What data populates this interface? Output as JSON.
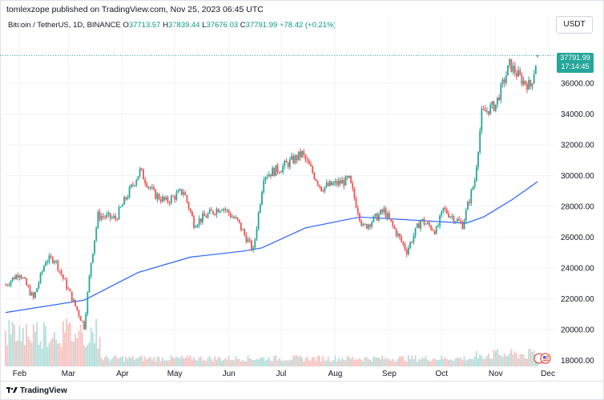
{
  "header": {
    "publisher": "tomlexzope published on TradingView.com, Nov 25, 2023 06:45 UTC"
  },
  "ohlc": {
    "symbol": "Bitcoin / TetherUS, 1D, BINANCE",
    "o_label": "O",
    "o_value": "37713.57",
    "h_label": "H",
    "h_value": "37839.44",
    "l_label": "L",
    "l_value": "37676.03",
    "c_label": "C",
    "c_value": "37791.99",
    "change": "+78.42 (+0.21%)"
  },
  "currency": "USDT",
  "last_price": {
    "price": "37791.99",
    "countdown": "17:14:45"
  },
  "footer": {
    "brand": "TradingView"
  },
  "colors": {
    "up": "#26a69a",
    "down": "#ef5350",
    "ma": "#2962ff",
    "vol_up": "#b2dfdb",
    "vol_down": "#f7c2c0"
  },
  "chart_data": {
    "type": "candlestick",
    "title": "Bitcoin / TetherUS, 1D, BINANCE",
    "x_ticks": [
      "Feb",
      "Mar",
      "Apr",
      "May",
      "Jun",
      "Jul",
      "Aug",
      "Sep",
      "Oct",
      "Nov",
      "Dec"
    ],
    "y_ticks": [
      "18000.00",
      "20000.00",
      "22000.00",
      "24000.00",
      "26000.00",
      "28000.00",
      "30000.00",
      "32000.00",
      "34000.00",
      "36000.00"
    ],
    "ylim": [
      17600,
      38800
    ],
    "close_series": [
      {
        "date": "2023-01-24",
        "close": 22900
      },
      {
        "date": "2023-02-01",
        "close": 23700
      },
      {
        "date": "2023-02-09",
        "close": 22000
      },
      {
        "date": "2023-02-16",
        "close": 24500
      },
      {
        "date": "2023-02-21",
        "close": 24600
      },
      {
        "date": "2023-03-02",
        "close": 22300
      },
      {
        "date": "2023-03-10",
        "close": 20200
      },
      {
        "date": "2023-03-14",
        "close": 24400
      },
      {
        "date": "2023-03-18",
        "close": 27400
      },
      {
        "date": "2023-03-28",
        "close": 27200
      },
      {
        "date": "2023-04-11",
        "close": 30300
      },
      {
        "date": "2023-04-19",
        "close": 28800
      },
      {
        "date": "2023-04-26",
        "close": 28300
      },
      {
        "date": "2023-05-06",
        "close": 29000
      },
      {
        "date": "2023-05-12",
        "close": 26900
      },
      {
        "date": "2023-05-28",
        "close": 28000
      },
      {
        "date": "2023-06-06",
        "close": 27000
      },
      {
        "date": "2023-06-15",
        "close": 25100
      },
      {
        "date": "2023-06-21",
        "close": 30000
      },
      {
        "date": "2023-07-01",
        "close": 30500
      },
      {
        "date": "2023-07-13",
        "close": 31400
      },
      {
        "date": "2023-07-24",
        "close": 29200
      },
      {
        "date": "2023-08-09",
        "close": 29700
      },
      {
        "date": "2023-08-17",
        "close": 26600
      },
      {
        "date": "2023-08-29",
        "close": 27700
      },
      {
        "date": "2023-09-11",
        "close": 25100
      },
      {
        "date": "2023-09-19",
        "close": 27100
      },
      {
        "date": "2023-09-28",
        "close": 26400
      },
      {
        "date": "2023-10-02",
        "close": 27800
      },
      {
        "date": "2023-10-13",
        "close": 26800
      },
      {
        "date": "2023-10-20",
        "close": 29700
      },
      {
        "date": "2023-10-24",
        "close": 34000
      },
      {
        "date": "2023-11-01",
        "close": 34600
      },
      {
        "date": "2023-11-09",
        "close": 37200
      },
      {
        "date": "2023-11-16",
        "close": 36200
      },
      {
        "date": "2023-11-21",
        "close": 35800
      },
      {
        "date": "2023-11-25",
        "close": 37791.99
      }
    ],
    "moving_average": [
      {
        "date": "2023-01-24",
        "value": 21100
      },
      {
        "date": "2023-03-10",
        "value": 21900
      },
      {
        "date": "2023-04-10",
        "value": 23700
      },
      {
        "date": "2023-05-10",
        "value": 24700
      },
      {
        "date": "2023-06-10",
        "value": 25100
      },
      {
        "date": "2023-06-20",
        "value": 25300
      },
      {
        "date": "2023-07-15",
        "value": 26600
      },
      {
        "date": "2023-08-15",
        "value": 27300
      },
      {
        "date": "2023-09-15",
        "value": 27100
      },
      {
        "date": "2023-10-15",
        "value": 26900
      },
      {
        "date": "2023-10-25",
        "value": 27300
      },
      {
        "date": "2023-11-10",
        "value": 28400
      },
      {
        "date": "2023-11-25",
        "value": 29600
      }
    ]
  }
}
